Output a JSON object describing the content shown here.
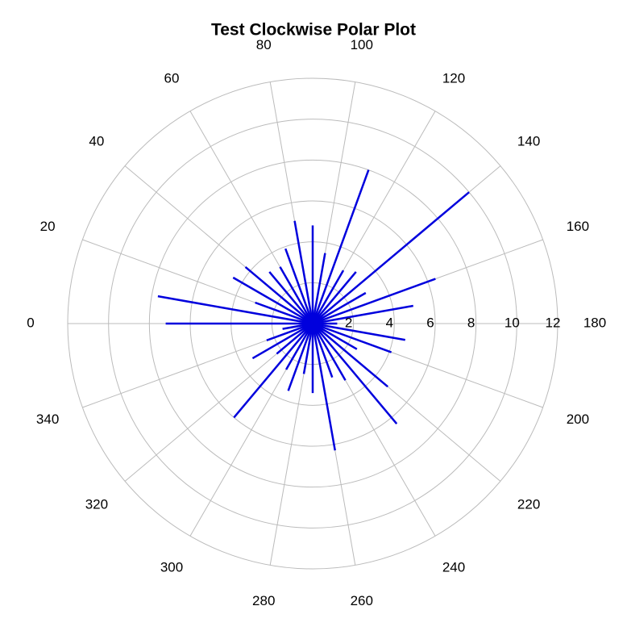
{
  "chart_data": {
    "type": "polar",
    "title": "Test Clockwise Polar Plot",
    "direction": "clockwise",
    "zero_location": "left",
    "angles": [
      0,
      10,
      20,
      30,
      40,
      50,
      60,
      70,
      80,
      90,
      100,
      110,
      120,
      130,
      140,
      150,
      160,
      170,
      180,
      190,
      200,
      210,
      220,
      230,
      240,
      250,
      260,
      270,
      280,
      290,
      300,
      310,
      320,
      330,
      340,
      350
    ],
    "values": [
      7.2,
      7.7,
      3.0,
      4.5,
      4.3,
      3.3,
      3.2,
      3.9,
      5.1,
      4.8,
      3.5,
      8.0,
      3.0,
      3.3,
      10.0,
      3.0,
      6.4,
      5.0,
      1.2,
      4.6,
      4.1,
      2.5,
      4.8,
      6.4,
      3.2,
      2.8,
      6.3,
      3.4,
      2.5,
      3.5,
      2.6,
      6.0,
      2.3,
      3.4,
      2.4,
      1.5
    ],
    "color": "#0000dd",
    "rlim": [
      0,
      12
    ],
    "rticks": [
      2,
      4,
      6,
      8,
      10,
      12
    ],
    "angle_ticks": [
      0,
      20,
      40,
      60,
      80,
      100,
      120,
      140,
      160,
      180,
      200,
      220,
      240,
      260,
      280,
      300,
      320,
      340
    ],
    "grid": true
  }
}
